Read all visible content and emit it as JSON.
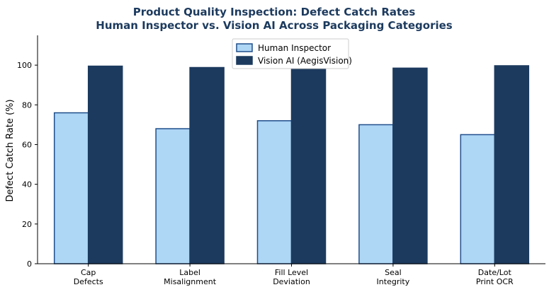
{
  "chart_data": {
    "type": "bar",
    "title": "Product Quality Inspection: Defect Catch Rates",
    "subtitle": "Human Inspector vs. Vision AI Across Packaging Categories",
    "xlabel": "",
    "ylabel": "Defect Catch Rate (%)",
    "ylim": [
      0,
      115
    ],
    "yticks": [
      0,
      20,
      40,
      60,
      80,
      100
    ],
    "grid": false,
    "legend_position": "top-center",
    "categories": [
      [
        "Cap",
        "Defects"
      ],
      [
        "Label",
        "Misalignment"
      ],
      [
        "Fill Level",
        "Deviation"
      ],
      [
        "Seal",
        "Integrity"
      ],
      [
        "Date/Lot",
        "Print OCR"
      ]
    ],
    "series": [
      {
        "name": "Human Inspector",
        "color": "#aed6f5",
        "edge": "#1f4e8c",
        "values": [
          76,
          68,
          72,
          70,
          65
        ]
      },
      {
        "name": "Vision AI (AegisVision)",
        "color": "#1c3a5e",
        "edge": "#1c3a5e",
        "values": [
          99.5,
          98.8,
          99.2,
          98.5,
          99.7
        ]
      }
    ]
  }
}
